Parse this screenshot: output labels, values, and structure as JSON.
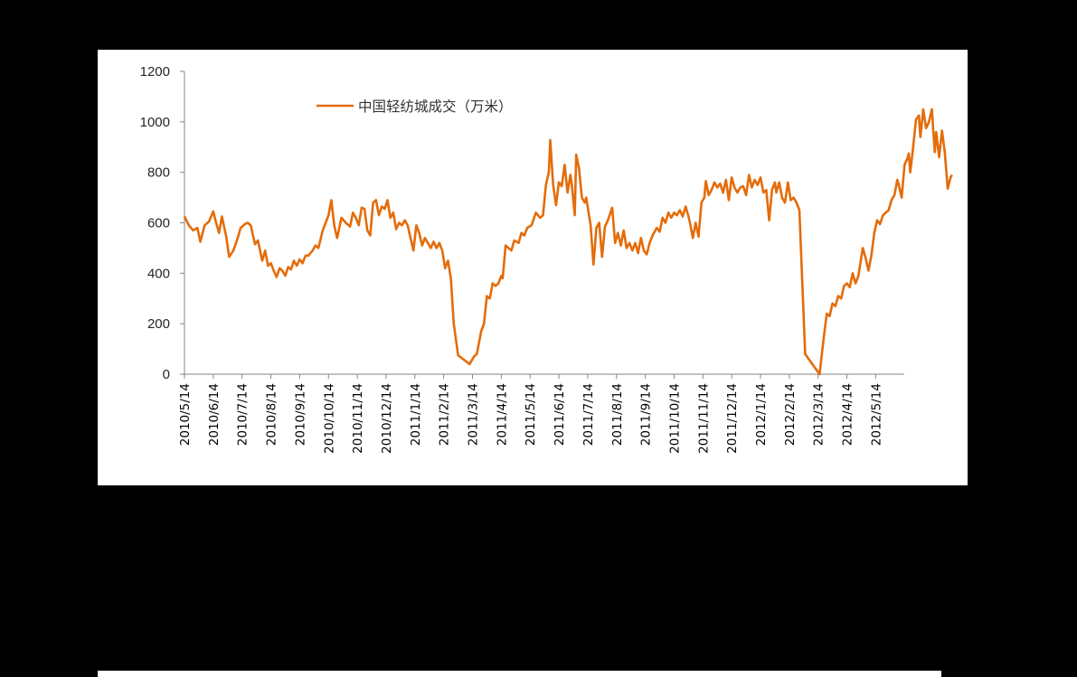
{
  "chart_data": {
    "type": "line",
    "title": "",
    "xlabel": "",
    "ylabel": "",
    "ylim": [
      0,
      1200
    ],
    "yticks": [
      0,
      200,
      400,
      600,
      800,
      1000,
      1200
    ],
    "grid": false,
    "legend_position": "top-inside",
    "categories": [
      "2010/5/14",
      "2010/6/14",
      "2010/7/14",
      "2010/8/14",
      "2010/9/14",
      "2010/10/14",
      "2010/11/14",
      "2010/12/14",
      "2011/1/14",
      "2011/2/14",
      "2011/3/14",
      "2011/4/14",
      "2011/5/14",
      "2011/6/14",
      "2011/7/14",
      "2011/8/14",
      "2011/9/14",
      "2011/10/14",
      "2011/11/14",
      "2011/12/14",
      "2012/1/14",
      "2012/2/14",
      "2012/3/14",
      "2012/4/14",
      "2012/5/14"
    ],
    "x_index_note": "x is month offset from 2010/5/14 (0) to 2012/5/14 (24)",
    "series": [
      {
        "name": "中国轻纺城成交（万米）",
        "color": "#E46C0A",
        "points": [
          [
            0.0,
            625
          ],
          [
            0.15,
            590
          ],
          [
            0.3,
            570
          ],
          [
            0.45,
            580
          ],
          [
            0.55,
            525
          ],
          [
            0.7,
            590
          ],
          [
            0.85,
            605
          ],
          [
            1.0,
            645
          ],
          [
            1.1,
            600
          ],
          [
            1.2,
            560
          ],
          [
            1.3,
            625
          ],
          [
            1.45,
            545
          ],
          [
            1.55,
            465
          ],
          [
            1.7,
            490
          ],
          [
            1.85,
            540
          ],
          [
            1.95,
            580
          ],
          [
            2.1,
            595
          ],
          [
            2.2,
            600
          ],
          [
            2.3,
            590
          ],
          [
            2.45,
            515
          ],
          [
            2.55,
            530
          ],
          [
            2.7,
            450
          ],
          [
            2.8,
            490
          ],
          [
            2.9,
            430
          ],
          [
            3.0,
            440
          ],
          [
            3.1,
            410
          ],
          [
            3.2,
            385
          ],
          [
            3.3,
            420
          ],
          [
            3.4,
            410
          ],
          [
            3.5,
            390
          ],
          [
            3.6,
            425
          ],
          [
            3.7,
            415
          ],
          [
            3.8,
            450
          ],
          [
            3.9,
            430
          ],
          [
            4.0,
            455
          ],
          [
            4.1,
            440
          ],
          [
            4.2,
            470
          ],
          [
            4.3,
            470
          ],
          [
            4.45,
            490
          ],
          [
            4.55,
            510
          ],
          [
            4.65,
            500
          ],
          [
            4.8,
            570
          ],
          [
            4.9,
            600
          ],
          [
            5.0,
            630
          ],
          [
            5.1,
            690
          ],
          [
            5.2,
            590
          ],
          [
            5.3,
            540
          ],
          [
            5.45,
            620
          ],
          [
            5.6,
            600
          ],
          [
            5.75,
            585
          ],
          [
            5.85,
            640
          ],
          [
            5.95,
            620
          ],
          [
            6.05,
            590
          ],
          [
            6.15,
            660
          ],
          [
            6.25,
            655
          ],
          [
            6.35,
            570
          ],
          [
            6.45,
            550
          ],
          [
            6.55,
            680
          ],
          [
            6.65,
            690
          ],
          [
            6.75,
            630
          ],
          [
            6.85,
            665
          ],
          [
            6.95,
            655
          ],
          [
            7.05,
            690
          ],
          [
            7.15,
            620
          ],
          [
            7.25,
            640
          ],
          [
            7.35,
            575
          ],
          [
            7.45,
            600
          ],
          [
            7.55,
            590
          ],
          [
            7.65,
            610
          ],
          [
            7.75,
            590
          ],
          [
            7.85,
            540
          ],
          [
            7.95,
            490
          ],
          [
            8.05,
            590
          ],
          [
            8.15,
            560
          ],
          [
            8.25,
            510
          ],
          [
            8.35,
            540
          ],
          [
            8.45,
            520
          ],
          [
            8.55,
            500
          ],
          [
            8.65,
            525
          ],
          [
            8.75,
            500
          ],
          [
            8.85,
            520
          ],
          [
            8.95,
            490
          ],
          [
            9.05,
            420
          ],
          [
            9.15,
            450
          ],
          [
            9.25,
            380
          ],
          [
            9.35,
            200
          ],
          [
            9.5,
            75
          ],
          [
            9.9,
            40
          ],
          [
            10.05,
            70
          ],
          [
            10.15,
            80
          ],
          [
            10.3,
            170
          ],
          [
            10.4,
            200
          ],
          [
            10.5,
            310
          ],
          [
            10.6,
            300
          ],
          [
            10.7,
            360
          ],
          [
            10.8,
            350
          ],
          [
            10.9,
            360
          ],
          [
            11.0,
            390
          ],
          [
            11.05,
            380
          ],
          [
            11.15,
            510
          ],
          [
            11.25,
            500
          ],
          [
            11.35,
            490
          ],
          [
            11.45,
            530
          ],
          [
            11.6,
            520
          ],
          [
            11.7,
            560
          ],
          [
            11.8,
            550
          ],
          [
            11.9,
            580
          ],
          [
            12.05,
            590
          ],
          [
            12.2,
            640
          ],
          [
            12.35,
            620
          ],
          [
            12.45,
            630
          ],
          [
            12.55,
            750
          ],
          [
            12.65,
            800
          ],
          [
            12.7,
            928
          ],
          [
            12.8,
            750
          ],
          [
            12.9,
            670
          ],
          [
            13.0,
            760
          ],
          [
            13.1,
            745
          ],
          [
            13.2,
            830
          ],
          [
            13.3,
            720
          ],
          [
            13.4,
            790
          ],
          [
            13.45,
            750
          ],
          [
            13.55,
            630
          ],
          [
            13.6,
            870
          ],
          [
            13.7,
            815
          ],
          [
            13.8,
            700
          ],
          [
            13.9,
            680
          ],
          [
            13.95,
            700
          ],
          [
            14.1,
            590
          ],
          [
            14.2,
            435
          ],
          [
            14.3,
            580
          ],
          [
            14.4,
            600
          ],
          [
            14.5,
            465
          ],
          [
            14.6,
            585
          ],
          [
            14.7,
            610
          ],
          [
            14.85,
            660
          ],
          [
            14.95,
            520
          ],
          [
            15.05,
            560
          ],
          [
            15.15,
            510
          ],
          [
            15.25,
            570
          ],
          [
            15.35,
            500
          ],
          [
            15.45,
            520
          ],
          [
            15.55,
            490
          ],
          [
            15.65,
            520
          ],
          [
            15.75,
            480
          ],
          [
            15.85,
            540
          ],
          [
            15.95,
            490
          ],
          [
            16.05,
            475
          ],
          [
            16.15,
            520
          ],
          [
            16.25,
            550
          ],
          [
            16.4,
            580
          ],
          [
            16.5,
            565
          ],
          [
            16.6,
            620
          ],
          [
            16.7,
            600
          ],
          [
            16.8,
            640
          ],
          [
            16.9,
            620
          ],
          [
            17.0,
            640
          ],
          [
            17.1,
            630
          ],
          [
            17.2,
            650
          ],
          [
            17.3,
            625
          ],
          [
            17.4,
            665
          ],
          [
            17.5,
            625
          ],
          [
            17.55,
            600
          ],
          [
            17.65,
            540
          ],
          [
            17.75,
            600
          ],
          [
            17.85,
            545
          ],
          [
            17.95,
            680
          ],
          [
            18.05,
            700
          ],
          [
            18.1,
            765
          ],
          [
            18.2,
            710
          ],
          [
            18.3,
            730
          ],
          [
            18.4,
            760
          ],
          [
            18.5,
            740
          ],
          [
            18.6,
            755
          ],
          [
            18.7,
            720
          ],
          [
            18.8,
            770
          ],
          [
            18.9,
            690
          ],
          [
            19.0,
            780
          ],
          [
            19.1,
            740
          ],
          [
            19.2,
            720
          ],
          [
            19.3,
            740
          ],
          [
            19.4,
            745
          ],
          [
            19.5,
            710
          ],
          [
            19.6,
            790
          ],
          [
            19.7,
            740
          ],
          [
            19.8,
            770
          ],
          [
            19.9,
            750
          ],
          [
            20.0,
            780
          ],
          [
            20.1,
            720
          ],
          [
            20.2,
            730
          ],
          [
            20.3,
            610
          ],
          [
            20.4,
            730
          ],
          [
            20.5,
            760
          ],
          [
            20.55,
            720
          ],
          [
            20.65,
            760
          ],
          [
            20.75,
            700
          ],
          [
            20.85,
            680
          ],
          [
            20.95,
            760
          ],
          [
            21.05,
            690
          ],
          [
            21.15,
            700
          ],
          [
            21.25,
            680
          ],
          [
            21.35,
            650
          ],
          [
            21.55,
            80
          ],
          [
            22.05,
            0
          ],
          [
            22.2,
            150
          ],
          [
            22.3,
            240
          ],
          [
            22.4,
            230
          ],
          [
            22.5,
            280
          ],
          [
            22.6,
            270
          ],
          [
            22.7,
            310
          ],
          [
            22.8,
            300
          ],
          [
            22.9,
            350
          ],
          [
            23.0,
            360
          ],
          [
            23.1,
            345
          ],
          [
            23.2,
            400
          ],
          [
            23.3,
            360
          ],
          [
            23.4,
            390
          ],
          [
            23.55,
            500
          ],
          [
            23.65,
            460
          ],
          [
            23.75,
            410
          ],
          [
            23.85,
            470
          ],
          [
            23.95,
            560
          ],
          [
            24.05,
            610
          ],
          [
            24.15,
            595
          ],
          [
            24.25,
            630
          ],
          [
            24.35,
            640
          ],
          [
            24.45,
            650
          ],
          [
            24.55,
            690
          ],
          [
            24.65,
            710
          ],
          [
            24.75,
            770
          ],
          [
            24.8,
            750
          ],
          [
            24.9,
            700
          ],
          [
            25.0,
            830
          ],
          [
            25.1,
            855
          ],
          [
            25.15,
            875
          ],
          [
            25.2,
            800
          ],
          [
            25.3,
            900
          ],
          [
            25.4,
            1010
          ],
          [
            25.5,
            1025
          ],
          [
            25.55,
            940
          ],
          [
            25.65,
            1050
          ],
          [
            25.75,
            975
          ],
          [
            25.85,
            1000
          ],
          [
            25.95,
            1050
          ],
          [
            26.05,
            880
          ],
          [
            26.1,
            960
          ],
          [
            26.2,
            860
          ],
          [
            26.3,
            965
          ],
          [
            26.4,
            880
          ],
          [
            26.5,
            735
          ],
          [
            26.6,
            780
          ],
          [
            26.65,
            790
          ]
        ]
      }
    ]
  },
  "legend": {
    "label": "中国轻纺城成交（万米）"
  },
  "axes": {
    "y_labels": [
      "0",
      "200",
      "400",
      "600",
      "800",
      "1000",
      "1200"
    ],
    "x_labels": [
      "2010/5/14",
      "2010/6/14",
      "2010/7/14",
      "2010/8/14",
      "2010/9/14",
      "2010/10/14",
      "2010/11/14",
      "2010/12/14",
      "2011/1/14",
      "2011/2/14",
      "2011/3/14",
      "2011/4/14",
      "2011/5/14",
      "2011/6/14",
      "2011/7/14",
      "2011/8/14",
      "2011/9/14",
      "2011/10/14",
      "2011/11/14",
      "2011/12/14",
      "2012/1/14",
      "2012/2/14",
      "2012/3/14",
      "2012/4/14",
      "2012/5/14"
    ]
  }
}
